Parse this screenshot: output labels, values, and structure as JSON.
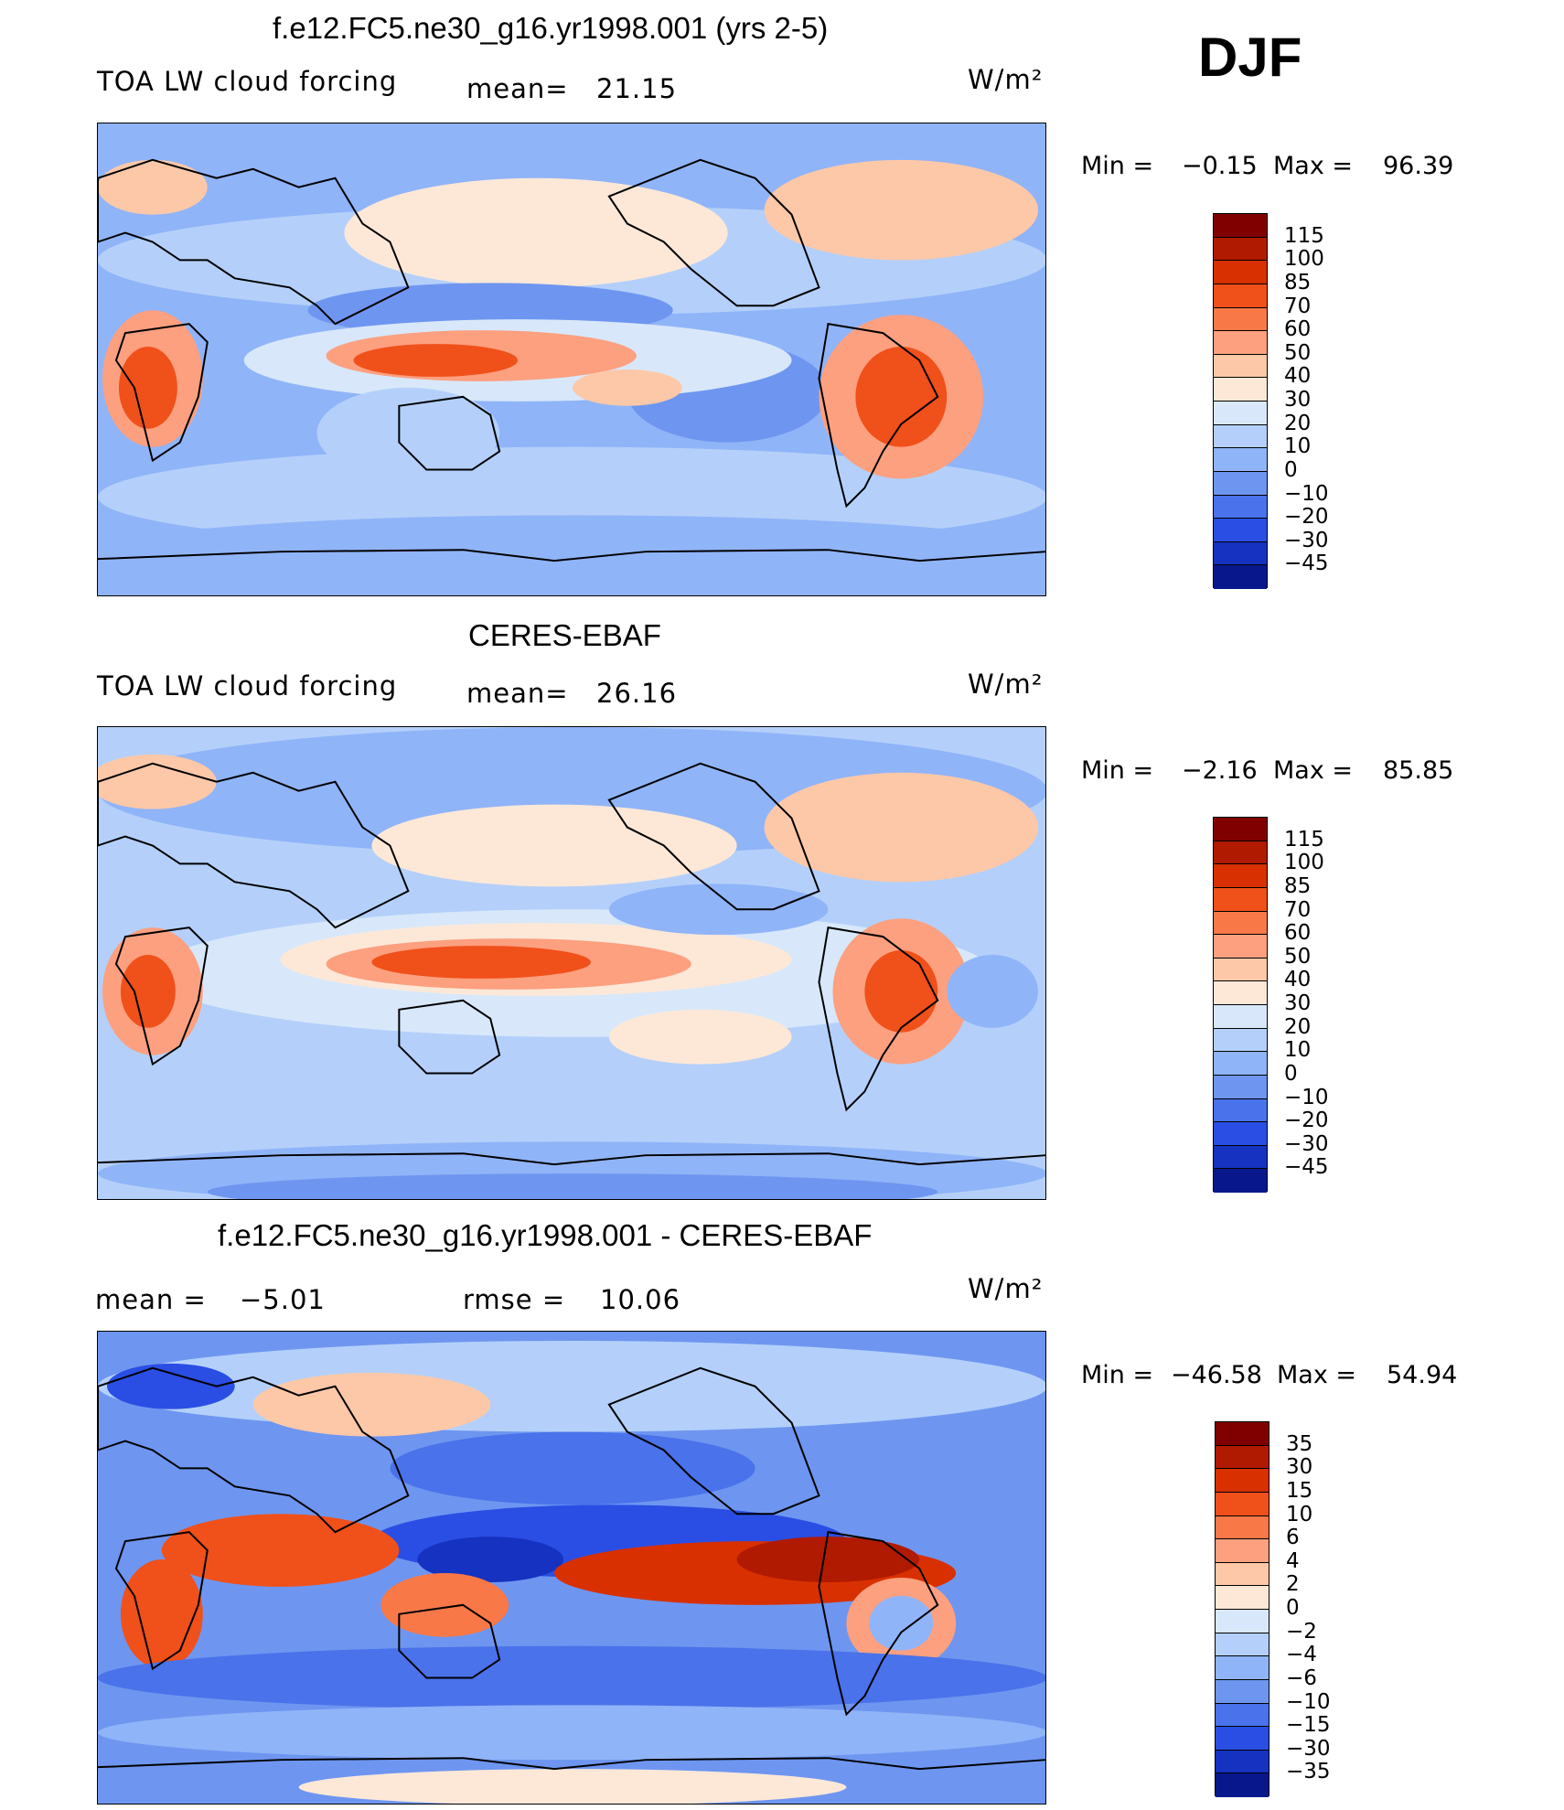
{
  "season": "DJF",
  "panels": [
    {
      "id": "model",
      "title": "f.e12.FC5.ne30_g16.yr1998.001 (yrs 2-5)",
      "left_label": "TOA LW cloud forcing",
      "stat1_label": "mean=",
      "stat1_value": "21.15",
      "units": "W/m²",
      "min_label": "Min =",
      "min_value": "−0.15",
      "max_label": "Max =",
      "max_value": "96.39",
      "colorbar": {
        "levels": [
          "115",
          "100",
          "85",
          "70",
          "60",
          "50",
          "40",
          "30",
          "20",
          "10",
          "0",
          "−10",
          "−20",
          "−30",
          "−45"
        ],
        "colors": [
          "#800000",
          "#b01a00",
          "#d83000",
          "#f0501a",
          "#f87848",
          "#fca080",
          "#fdc8a8",
          "#fde8d8",
          "#d8e8fa",
          "#b4d0fa",
          "#90b4f8",
          "#6e96f0",
          "#4a72ea",
          "#2a4ee4",
          "#1632c0",
          "#08188c"
        ]
      }
    },
    {
      "id": "obs",
      "title": "CERES-EBAF",
      "left_label": "TOA LW cloud forcing",
      "stat1_label": "mean=",
      "stat1_value": "26.16",
      "units": "W/m²",
      "min_label": "Min =",
      "min_value": "−2.16",
      "max_label": "Max =",
      "max_value": "85.85",
      "colorbar": {
        "levels": [
          "115",
          "100",
          "85",
          "70",
          "60",
          "50",
          "40",
          "30",
          "20",
          "10",
          "0",
          "−10",
          "−20",
          "−30",
          "−45"
        ],
        "colors": [
          "#800000",
          "#b01a00",
          "#d83000",
          "#f0501a",
          "#f87848",
          "#fca080",
          "#fdc8a8",
          "#fde8d8",
          "#d8e8fa",
          "#b4d0fa",
          "#90b4f8",
          "#6e96f0",
          "#4a72ea",
          "#2a4ee4",
          "#1632c0",
          "#08188c"
        ]
      }
    },
    {
      "id": "diff",
      "title": "f.e12.FC5.ne30_g16.yr1998.001 - CERES-EBAF",
      "left_label": "mean =",
      "left_value": "−5.01",
      "stat1_label": "rmse =",
      "stat1_value": "10.06",
      "units": "W/m²",
      "min_label": "Min =",
      "min_value": "−46.58",
      "max_label": "Max =",
      "max_value": "54.94",
      "colorbar": {
        "levels": [
          "35",
          "30",
          "15",
          "10",
          "6",
          "4",
          "2",
          "0",
          "−2",
          "−4",
          "−6",
          "−10",
          "−15",
          "−30",
          "−35"
        ],
        "colors": [
          "#800000",
          "#b01a00",
          "#d83000",
          "#f0501a",
          "#f87848",
          "#fca080",
          "#fdc8a8",
          "#fde8d8",
          "#d8e8fa",
          "#b4d0fa",
          "#90b4f8",
          "#6e96f0",
          "#4a72ea",
          "#2a4ee4",
          "#1632c0",
          "#08188c"
        ]
      }
    }
  ]
}
